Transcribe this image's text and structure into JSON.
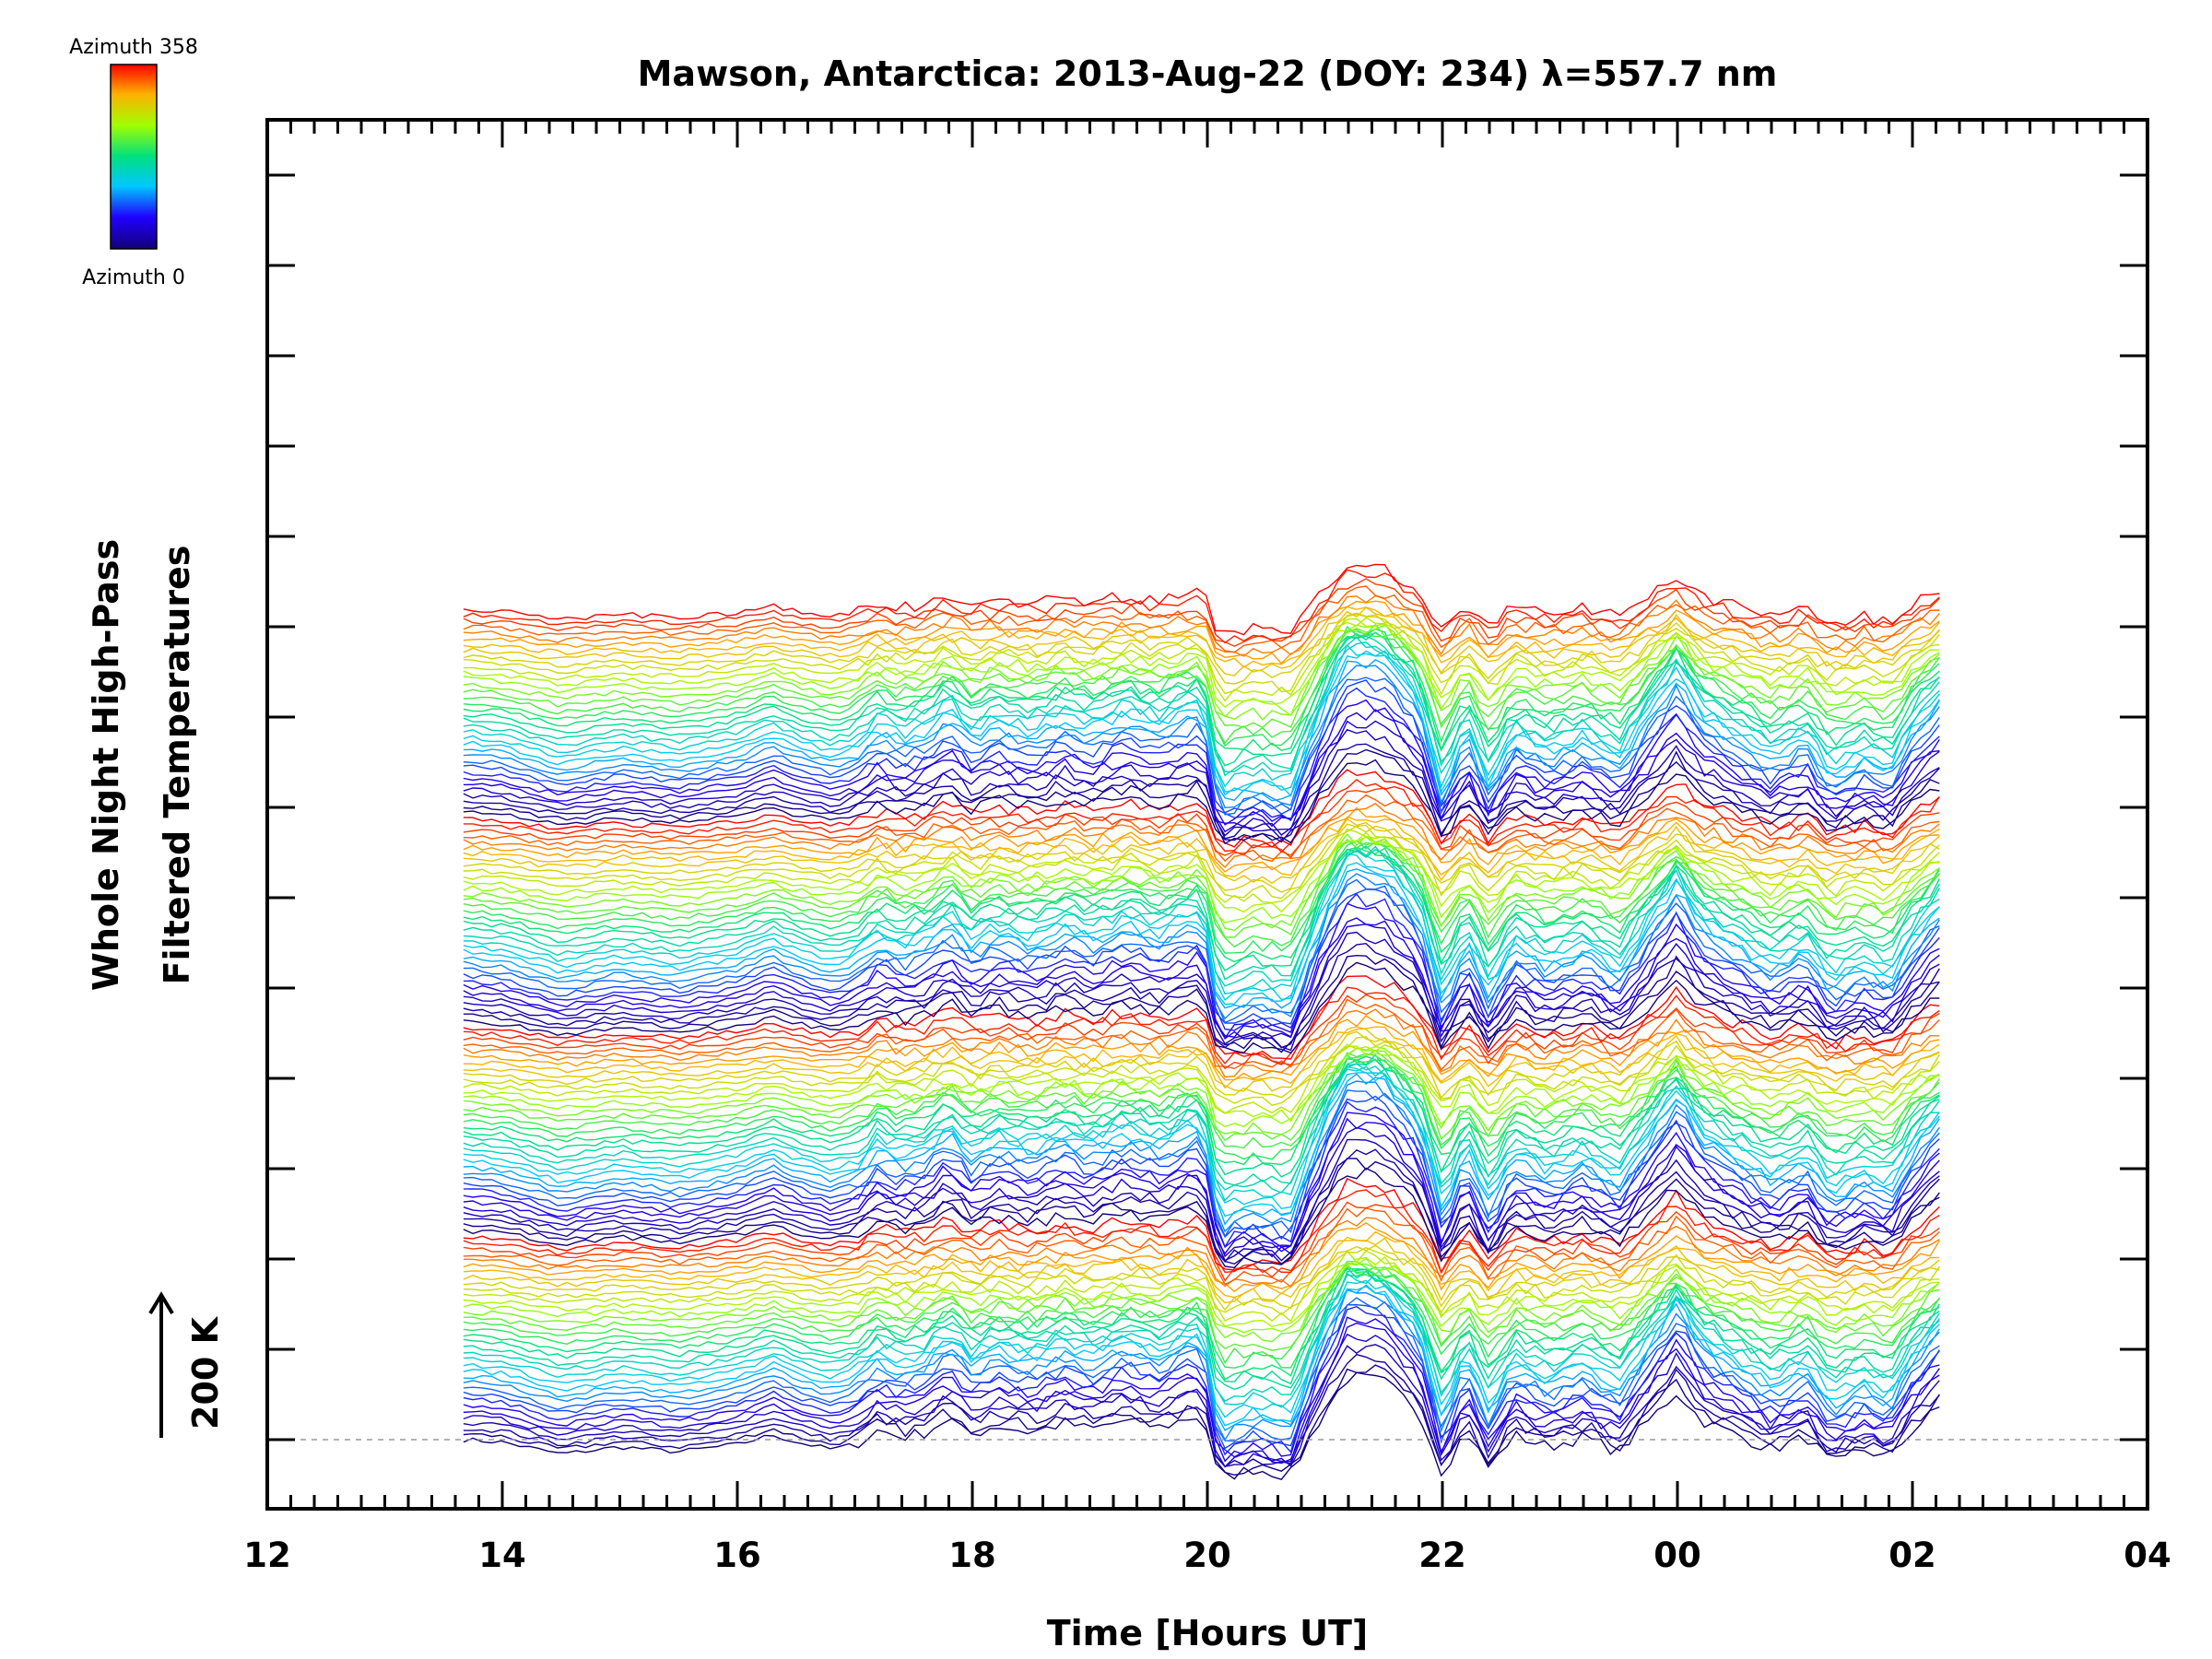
{
  "chart_data": {
    "type": "line",
    "title": "Mawson, Antarctica: 2013-Aug-22 (DOY: 234) λ=557.7 nm",
    "xlabel": "Time [Hours UT]",
    "ylabel_lines": [
      "Whole Night High-Pass",
      "Filtered Temperatures"
    ],
    "x_ticks": [
      "12",
      "14",
      "16",
      "18",
      "20",
      "22",
      "00",
      "02",
      "04"
    ],
    "x_range_hours_elapsed_from_12UT": [
      0,
      16
    ],
    "scale_label": "200 K",
    "colorbar": {
      "top_label": "Azimuth 358",
      "bottom_label": "Azimuth 0",
      "min": 0,
      "max": 358,
      "colormap": "rainbow"
    },
    "n_series": 144,
    "series_stack_note": "Each trace is vertically offset by azimuth; baseline dashed line at the lowest trace.",
    "data_start_hour_UT": 13.67,
    "data_end_hour_UT": 26.3,
    "representative_profile": {
      "x_hours_UT": [
        13.67,
        14.0,
        14.5,
        15.0,
        15.5,
        16.0,
        16.3,
        16.5,
        16.8,
        17.0,
        17.2,
        17.4,
        17.6,
        17.8,
        18.0,
        18.2,
        18.5,
        18.8,
        19.0,
        19.3,
        19.6,
        19.9,
        20.0,
        20.1,
        20.4,
        20.7,
        21.0,
        21.2,
        21.5,
        21.8,
        22.0,
        22.2,
        22.4,
        22.6,
        22.9,
        23.2,
        23.5,
        23.8,
        24.0,
        24.2,
        24.5,
        24.8,
        25.1,
        25.3,
        25.6,
        25.8,
        26.0,
        26.3
      ],
      "y_relative_kelvin": [
        0,
        -5,
        -30,
        -15,
        -25,
        -10,
        10,
        -5,
        -20,
        -10,
        20,
        5,
        15,
        45,
        10,
        30,
        15,
        35,
        20,
        40,
        25,
        50,
        20,
        -80,
        -60,
        -75,
        60,
        130,
        120,
        60,
        -70,
        20,
        -60,
        10,
        -15,
        5,
        -25,
        50,
        100,
        40,
        10,
        -20,
        5,
        -45,
        -20,
        -40,
        20,
        80
      ]
    }
  },
  "colors": {
    "baseline_dashed": "#9a9a9a",
    "axes": "#000000"
  }
}
